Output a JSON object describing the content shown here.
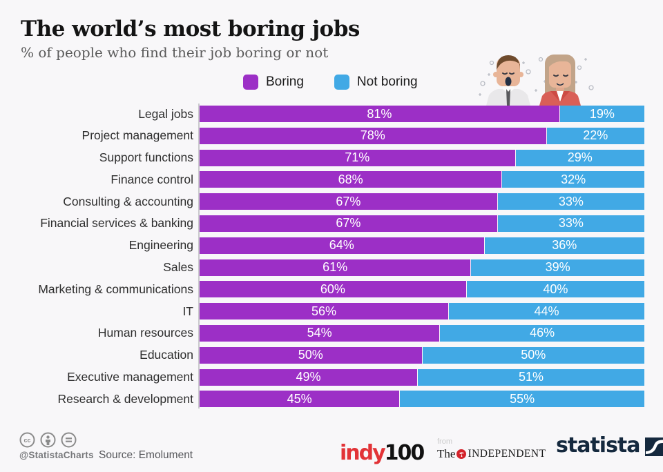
{
  "title": "The world’s most boring jobs",
  "subtitle": "% of people who find their job boring or not",
  "legend": [
    {
      "label": "Boring",
      "color": "#9c2fc6"
    },
    {
      "label": "Not boring",
      "color": "#41a9e5"
    }
  ],
  "chart_data": {
    "type": "bar",
    "orientation": "horizontal",
    "stacked": true,
    "xlim": [
      0,
      100
    ],
    "value_suffix": "%",
    "grid": false,
    "legend_position": "top",
    "categories": [
      "Legal jobs",
      "Project management",
      "Support functions",
      "Finance control",
      "Consulting & accounting",
      "Financial services & banking",
      "Engineering",
      "Sales",
      "Marketing & communications",
      "IT",
      "Human resources",
      "Education",
      "Executive management",
      "Research & development"
    ],
    "series": [
      {
        "name": "Boring",
        "color": "#9c2fc6",
        "values": [
          81,
          78,
          71,
          68,
          67,
          67,
          64,
          61,
          60,
          56,
          54,
          50,
          49,
          45
        ]
      },
      {
        "name": "Not boring",
        "color": "#41a9e5",
        "values": [
          19,
          22,
          29,
          32,
          33,
          33,
          36,
          39,
          40,
          44,
          46,
          50,
          51,
          55
        ]
      }
    ]
  },
  "illustration": "bored-man-and-woman",
  "footer": {
    "handle": "@StatistaCharts",
    "source": "Source: Emolument",
    "cc_label": "cc",
    "logos": {
      "indy": "indy",
      "indy_num": "100",
      "from": "from",
      "the": "The",
      "independent": "INDEPENDENT",
      "statista": "statista"
    }
  }
}
